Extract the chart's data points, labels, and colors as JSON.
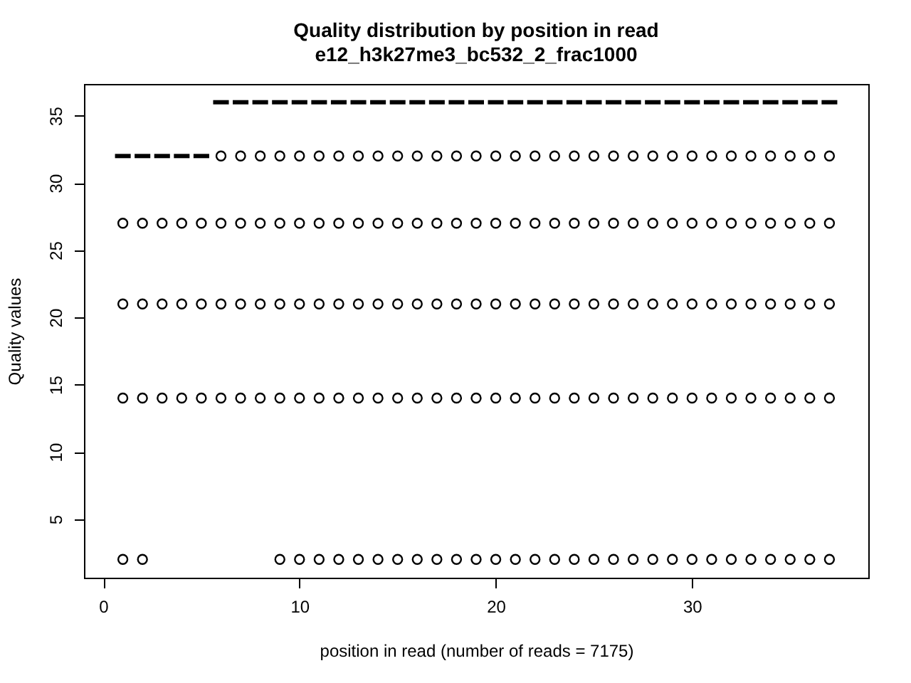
{
  "chart_data": {
    "type": "box",
    "title": "Quality distribution by position in read",
    "subtitle": "e12_h3k27me3_bc532_2_frac1000",
    "xlabel": "position in read (number of reads = 7175)",
    "ylabel": "Quality values",
    "color": "#000000",
    "marker": "circle",
    "x": [
      1,
      2,
      3,
      4,
      5,
      6,
      7,
      8,
      9,
      10,
      11,
      12,
      13,
      14,
      15,
      16,
      17,
      18,
      19,
      20,
      21,
      22,
      23,
      24,
      25,
      26,
      27,
      28,
      29,
      30,
      31,
      32,
      33,
      34,
      35,
      36,
      37
    ],
    "xlim": [
      -0.98,
      38.98
    ],
    "xticks": [
      0,
      10,
      20,
      30
    ],
    "ylim": [
      0.64,
      37.36
    ],
    "yticks": [
      5,
      10,
      15,
      20,
      25,
      30,
      35
    ],
    "boxes": [
      {
        "low": 32,
        "q1": 32,
        "median": 32,
        "q3": 32,
        "high": 32,
        "outliers": [
          2,
          14,
          21,
          27
        ]
      },
      {
        "low": 32,
        "q1": 32,
        "median": 32,
        "q3": 32,
        "high": 32,
        "outliers": [
          2,
          14,
          21,
          27
        ]
      },
      {
        "low": 32,
        "q1": 32,
        "median": 32,
        "q3": 32,
        "high": 32,
        "outliers": [
          14,
          21,
          27
        ]
      },
      {
        "low": 32,
        "q1": 32,
        "median": 32,
        "q3": 32,
        "high": 32,
        "outliers": [
          14,
          21,
          27
        ]
      },
      {
        "low": 32,
        "q1": 32,
        "median": 32,
        "q3": 32,
        "high": 32,
        "outliers": [
          14,
          21,
          27
        ]
      },
      {
        "low": 36,
        "q1": 36,
        "median": 36,
        "q3": 36,
        "high": 36,
        "outliers": [
          14,
          21,
          27,
          32
        ]
      },
      {
        "low": 36,
        "q1": 36,
        "median": 36,
        "q3": 36,
        "high": 36,
        "outliers": [
          14,
          21,
          27,
          32
        ]
      },
      {
        "low": 36,
        "q1": 36,
        "median": 36,
        "q3": 36,
        "high": 36,
        "outliers": [
          14,
          21,
          27,
          32
        ]
      },
      {
        "low": 36,
        "q1": 36,
        "median": 36,
        "q3": 36,
        "high": 36,
        "outliers": [
          2,
          14,
          21,
          27,
          32
        ]
      },
      {
        "low": 36,
        "q1": 36,
        "median": 36,
        "q3": 36,
        "high": 36,
        "outliers": [
          2,
          14,
          21,
          27,
          32
        ]
      },
      {
        "low": 36,
        "q1": 36,
        "median": 36,
        "q3": 36,
        "high": 36,
        "outliers": [
          2,
          14,
          21,
          27,
          32
        ]
      },
      {
        "low": 36,
        "q1": 36,
        "median": 36,
        "q3": 36,
        "high": 36,
        "outliers": [
          2,
          14,
          21,
          27,
          32
        ]
      },
      {
        "low": 36,
        "q1": 36,
        "median": 36,
        "q3": 36,
        "high": 36,
        "outliers": [
          2,
          14,
          21,
          27,
          32
        ]
      },
      {
        "low": 36,
        "q1": 36,
        "median": 36,
        "q3": 36,
        "high": 36,
        "outliers": [
          2,
          14,
          21,
          27,
          32
        ]
      },
      {
        "low": 36,
        "q1": 36,
        "median": 36,
        "q3": 36,
        "high": 36,
        "outliers": [
          2,
          14,
          21,
          27,
          32
        ]
      },
      {
        "low": 36,
        "q1": 36,
        "median": 36,
        "q3": 36,
        "high": 36,
        "outliers": [
          2,
          14,
          21,
          27,
          32
        ]
      },
      {
        "low": 36,
        "q1": 36,
        "median": 36,
        "q3": 36,
        "high": 36,
        "outliers": [
          2,
          14,
          21,
          27,
          32
        ]
      },
      {
        "low": 36,
        "q1": 36,
        "median": 36,
        "q3": 36,
        "high": 36,
        "outliers": [
          2,
          14,
          21,
          27,
          32
        ]
      },
      {
        "low": 36,
        "q1": 36,
        "median": 36,
        "q3": 36,
        "high": 36,
        "outliers": [
          2,
          14,
          21,
          27,
          32
        ]
      },
      {
        "low": 36,
        "q1": 36,
        "median": 36,
        "q3": 36,
        "high": 36,
        "outliers": [
          2,
          14,
          21,
          27,
          32
        ]
      },
      {
        "low": 36,
        "q1": 36,
        "median": 36,
        "q3": 36,
        "high": 36,
        "outliers": [
          2,
          14,
          21,
          27,
          32
        ]
      },
      {
        "low": 36,
        "q1": 36,
        "median": 36,
        "q3": 36,
        "high": 36,
        "outliers": [
          2,
          14,
          21,
          27,
          32
        ]
      },
      {
        "low": 36,
        "q1": 36,
        "median": 36,
        "q3": 36,
        "high": 36,
        "outliers": [
          2,
          14,
          21,
          27,
          32
        ]
      },
      {
        "low": 36,
        "q1": 36,
        "median": 36,
        "q3": 36,
        "high": 36,
        "outliers": [
          2,
          14,
          21,
          27,
          32
        ]
      },
      {
        "low": 36,
        "q1": 36,
        "median": 36,
        "q3": 36,
        "high": 36,
        "outliers": [
          2,
          14,
          21,
          27,
          32
        ]
      },
      {
        "low": 36,
        "q1": 36,
        "median": 36,
        "q3": 36,
        "high": 36,
        "outliers": [
          2,
          14,
          21,
          27,
          32
        ]
      },
      {
        "low": 36,
        "q1": 36,
        "median": 36,
        "q3": 36,
        "high": 36,
        "outliers": [
          2,
          14,
          21,
          27,
          32
        ]
      },
      {
        "low": 36,
        "q1": 36,
        "median": 36,
        "q3": 36,
        "high": 36,
        "outliers": [
          2,
          14,
          21,
          27,
          32
        ]
      },
      {
        "low": 36,
        "q1": 36,
        "median": 36,
        "q3": 36,
        "high": 36,
        "outliers": [
          2,
          14,
          21,
          27,
          32
        ]
      },
      {
        "low": 36,
        "q1": 36,
        "median": 36,
        "q3": 36,
        "high": 36,
        "outliers": [
          2,
          14,
          21,
          27,
          32
        ]
      },
      {
        "low": 36,
        "q1": 36,
        "median": 36,
        "q3": 36,
        "high": 36,
        "outliers": [
          2,
          14,
          21,
          27,
          32
        ]
      },
      {
        "low": 36,
        "q1": 36,
        "median": 36,
        "q3": 36,
        "high": 36,
        "outliers": [
          2,
          14,
          21,
          27,
          32
        ]
      },
      {
        "low": 36,
        "q1": 36,
        "median": 36,
        "q3": 36,
        "high": 36,
        "outliers": [
          2,
          14,
          21,
          27,
          32
        ]
      },
      {
        "low": 36,
        "q1": 36,
        "median": 36,
        "q3": 36,
        "high": 36,
        "outliers": [
          2,
          14,
          21,
          27,
          32
        ]
      },
      {
        "low": 36,
        "q1": 36,
        "median": 36,
        "q3": 36,
        "high": 36,
        "outliers": [
          2,
          14,
          21,
          27,
          32
        ]
      },
      {
        "low": 36,
        "q1": 36,
        "median": 36,
        "q3": 36,
        "high": 36,
        "outliers": [
          2,
          14,
          21,
          27,
          32
        ]
      },
      {
        "low": 36,
        "q1": 36,
        "median": 36,
        "q3": 36,
        "high": 36,
        "outliers": [
          2,
          14,
          21,
          27,
          32
        ]
      }
    ]
  }
}
